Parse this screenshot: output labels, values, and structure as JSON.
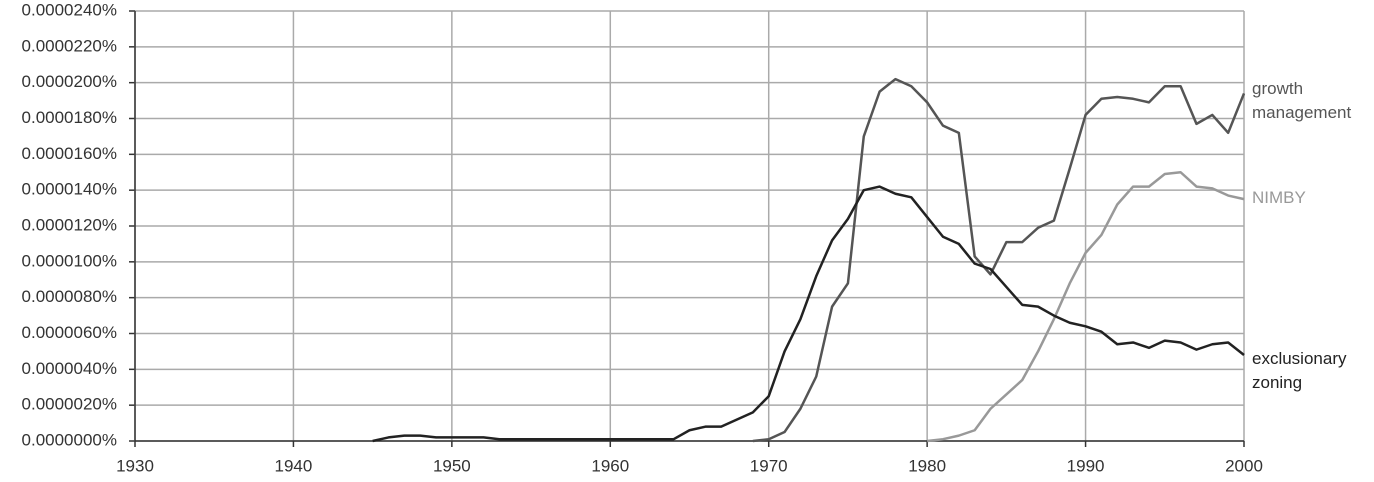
{
  "chart_data": {
    "type": "line",
    "grid": true,
    "xlim": [
      1930,
      2000
    ],
    "xticks": [
      1930,
      1940,
      1950,
      1960,
      1970,
      1980,
      1990,
      2000
    ],
    "ylim": [
      0,
      2.4e-05
    ],
    "yticks": [
      {
        "value": 0,
        "label": "0.0000000%"
      },
      {
        "value": 2e-06,
        "label": "0.0000020%"
      },
      {
        "value": 4e-06,
        "label": "0.0000040%"
      },
      {
        "value": 6e-06,
        "label": "0.0000060%"
      },
      {
        "value": 8e-06,
        "label": "0.0000080%"
      },
      {
        "value": 1e-05,
        "label": "0.0000100%"
      },
      {
        "value": 1.2e-05,
        "label": "0.0000120%"
      },
      {
        "value": 1.4e-05,
        "label": "0.0000140%"
      },
      {
        "value": 1.6e-05,
        "label": "0.0000160%"
      },
      {
        "value": 1.8e-05,
        "label": "0.0000180%"
      },
      {
        "value": 2e-05,
        "label": "0.0000200%"
      },
      {
        "value": 2.2e-05,
        "label": "0.0000220%"
      },
      {
        "value": 2.4e-05,
        "label": "0.0000240%"
      }
    ],
    "series": [
      {
        "name": "growth management",
        "color": "#555555",
        "x": [
          1969,
          1970,
          1971,
          1972,
          1973,
          1974,
          1975,
          1976,
          1977,
          1978,
          1979,
          1980,
          1981,
          1982,
          1983,
          1984,
          1985,
          1986,
          1987,
          1988,
          1989,
          1990,
          1991,
          1992,
          1993,
          1994,
          1995,
          1996,
          1997,
          1998,
          1999,
          2000
        ],
        "values": [
          0,
          1e-07,
          5e-07,
          1.8e-06,
          3.6e-06,
          7.5e-06,
          8.8e-06,
          1.7e-05,
          1.95e-05,
          2.02e-05,
          1.98e-05,
          1.89e-05,
          1.76e-05,
          1.72e-05,
          1.03e-05,
          9.3e-06,
          1.11e-05,
          1.11e-05,
          1.19e-05,
          1.23e-05,
          1.52e-05,
          1.82e-05,
          1.91e-05,
          1.92e-05,
          1.91e-05,
          1.89e-05,
          1.98e-05,
          1.98e-05,
          1.77e-05,
          1.82e-05,
          1.72e-05,
          1.94e-05
        ]
      },
      {
        "name": "NIMBY",
        "color": "#999999",
        "x": [
          1980,
          1981,
          1982,
          1983,
          1984,
          1985,
          1986,
          1987,
          1988,
          1989,
          1990,
          1991,
          1992,
          1993,
          1994,
          1995,
          1996,
          1997,
          1998,
          1999,
          2000
        ],
        "values": [
          0,
          1e-07,
          3e-07,
          6e-07,
          1.8e-06,
          2.6e-06,
          3.4e-06,
          5e-06,
          6.8e-06,
          8.8e-06,
          1.05e-05,
          1.15e-05,
          1.32e-05,
          1.42e-05,
          1.42e-05,
          1.49e-05,
          1.5e-05,
          1.42e-05,
          1.41e-05,
          1.37e-05,
          1.35e-05
        ]
      },
      {
        "name": "exclusionary zoning",
        "color": "#222222",
        "x": [
          1945,
          1946,
          1947,
          1948,
          1949,
          1950,
          1951,
          1952,
          1953,
          1954,
          1955,
          1956,
          1957,
          1958,
          1959,
          1960,
          1961,
          1962,
          1963,
          1964,
          1965,
          1966,
          1967,
          1968,
          1969,
          1970,
          1971,
          1972,
          1973,
          1974,
          1975,
          1976,
          1977,
          1978,
          1979,
          1980,
          1981,
          1982,
          1983,
          1984,
          1985,
          1986,
          1987,
          1988,
          1989,
          1990,
          1991,
          1992,
          1993,
          1994,
          1995,
          1996,
          1997,
          1998,
          1999,
          2000
        ],
        "values": [
          0,
          2e-07,
          3e-07,
          3e-07,
          2e-07,
          2e-07,
          2e-07,
          2e-07,
          1e-07,
          1e-07,
          1e-07,
          1e-07,
          1e-07,
          1e-07,
          1e-07,
          1e-07,
          1e-07,
          1e-07,
          1e-07,
          1e-07,
          6e-07,
          8e-07,
          8e-07,
          1.2e-06,
          1.6e-06,
          2.5e-06,
          5e-06,
          6.8e-06,
          9.2e-06,
          1.12e-05,
          1.24e-05,
          1.4e-05,
          1.42e-05,
          1.38e-05,
          1.36e-05,
          1.25e-05,
          1.14e-05,
          1.1e-05,
          9.9e-06,
          9.6e-06,
          8.6e-06,
          7.6e-06,
          7.5e-06,
          7e-06,
          6.6e-06,
          6.4e-06,
          6.1e-06,
          5.4e-06,
          5.5e-06,
          5.2e-06,
          5.6e-06,
          5.5e-06,
          5.1e-06,
          5.4e-06,
          5.5e-06,
          4.8e-06
        ]
      }
    ]
  }
}
